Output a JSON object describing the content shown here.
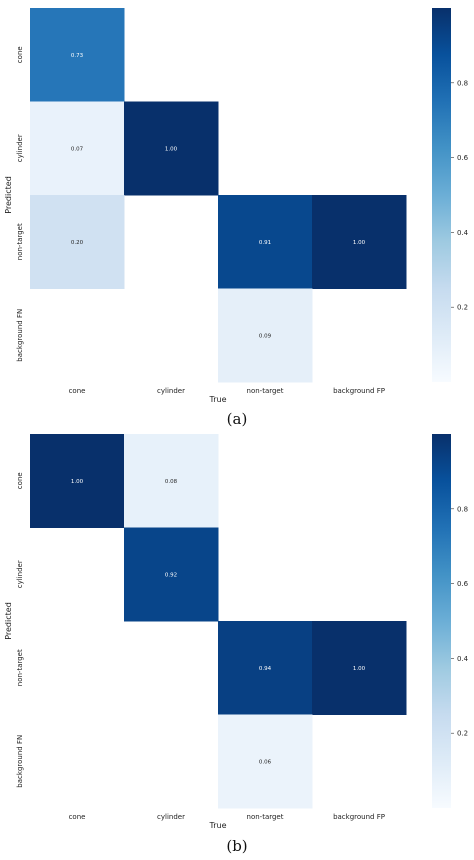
{
  "chart_data": [
    {
      "type": "heatmap",
      "caption": "(a)",
      "x_categories": [
        "cone",
        "cylinder",
        "non-target",
        "background FP"
      ],
      "y_categories": [
        "cone",
        "cylinder",
        "non-target",
        "background FN"
      ],
      "xlabel": "True",
      "ylabel": "Predicted",
      "cells": [
        {
          "row": 0,
          "col": 0,
          "value": 0.73,
          "label": "0.73"
        },
        {
          "row": 1,
          "col": 0,
          "value": 0.07,
          "label": "0.07"
        },
        {
          "row": 1,
          "col": 1,
          "value": 1.0,
          "label": "1.00"
        },
        {
          "row": 2,
          "col": 0,
          "value": 0.2,
          "label": "0.20"
        },
        {
          "row": 2,
          "col": 2,
          "value": 0.91,
          "label": "0.91"
        },
        {
          "row": 2,
          "col": 3,
          "value": 1.0,
          "label": "1.00"
        },
        {
          "row": 3,
          "col": 2,
          "value": 0.09,
          "label": "0.09"
        }
      ],
      "colorbar": {
        "range": [
          0,
          1
        ],
        "ticks": [
          "0.2",
          "0.4",
          "0.6",
          "0.8"
        ],
        "tick_values": [
          0.2,
          0.4,
          0.6,
          0.8
        ]
      },
      "colormap": "Blues",
      "grid": false
    },
    {
      "type": "heatmap",
      "caption": "(b)",
      "x_categories": [
        "cone",
        "cylinder",
        "non-target",
        "background FP"
      ],
      "y_categories": [
        "cone",
        "cylinder",
        "non-target",
        "background FN"
      ],
      "xlabel": "True",
      "ylabel": "Predicted",
      "cells": [
        {
          "row": 0,
          "col": 0,
          "value": 1.0,
          "label": "1.00"
        },
        {
          "row": 0,
          "col": 1,
          "value": 0.08,
          "label": "0.08"
        },
        {
          "row": 1,
          "col": 1,
          "value": 0.92,
          "label": "0.92"
        },
        {
          "row": 2,
          "col": 2,
          "value": 0.94,
          "label": "0.94"
        },
        {
          "row": 2,
          "col": 3,
          "value": 1.0,
          "label": "1.00"
        },
        {
          "row": 3,
          "col": 2,
          "value": 0.06,
          "label": "0.06"
        }
      ],
      "colorbar": {
        "range": [
          0,
          1
        ],
        "ticks": [
          "0.2",
          "0.4",
          "0.6",
          "0.8"
        ],
        "tick_values": [
          0.2,
          0.4,
          0.6,
          0.8
        ]
      },
      "colormap": "Blues",
      "grid": false
    }
  ]
}
